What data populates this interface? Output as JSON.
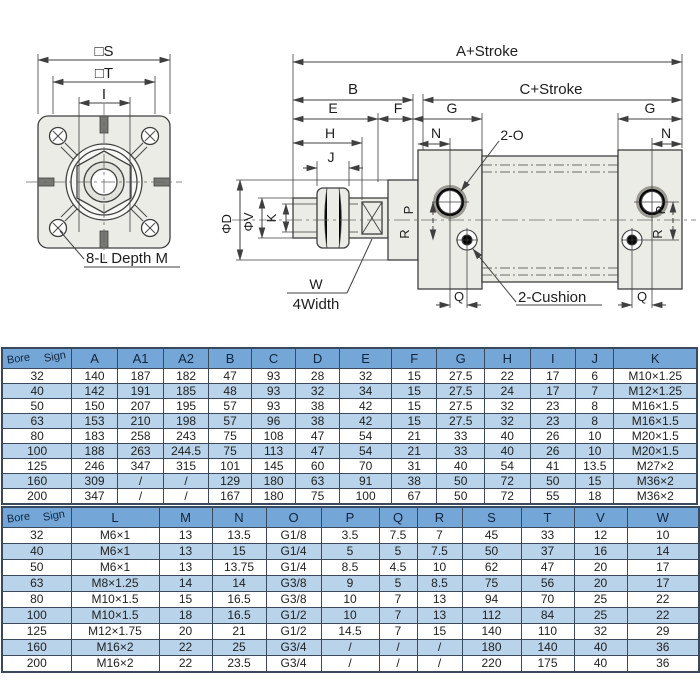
{
  "colors": {
    "header_blue": "#74a7d8",
    "row_alt_blue": "#b9d4ea",
    "table_border": "#3a4a5c",
    "drawing_line": "#3f3f3f",
    "metal_fill": "#ecece7"
  },
  "diagram": {
    "front_view": {
      "s": "□S",
      "t": "□T",
      "i": "I",
      "holes": "8-L Depth M"
    },
    "side_view": {
      "a": "A+Stroke",
      "b": "B",
      "c": "C+Stroke",
      "e": "E",
      "f": "F",
      "g": "G",
      "h": "H",
      "n": "N",
      "o": "2-O",
      "j": "J",
      "phi_d": "ΦD",
      "phi_v": "ΦV",
      "k": "K",
      "p": "P",
      "r": "R",
      "q": "Q",
      "w": "W",
      "width4": "4Width",
      "cushion": "2-Cushion"
    }
  },
  "table1": {
    "corner": {
      "top": "Sign",
      "bottom": "Bore"
    },
    "columns": [
      "A",
      "A1",
      "A2",
      "B",
      "C",
      "D",
      "E",
      "F",
      "G",
      "H",
      "I",
      "J",
      "K"
    ],
    "rows": [
      {
        "bore": "32",
        "values": [
          "140",
          "187",
          "182",
          "47",
          "93",
          "28",
          "32",
          "15",
          "27.5",
          "22",
          "17",
          "6",
          "M10×1.25"
        ]
      },
      {
        "bore": "40",
        "values": [
          "142",
          "191",
          "185",
          "48",
          "93",
          "32",
          "34",
          "15",
          "27.5",
          "24",
          "17",
          "7",
          "M12×1.25"
        ]
      },
      {
        "bore": "50",
        "values": [
          "150",
          "207",
          "195",
          "57",
          "93",
          "38",
          "42",
          "15",
          "27.5",
          "32",
          "23",
          "8",
          "M16×1.5"
        ]
      },
      {
        "bore": "63",
        "values": [
          "153",
          "210",
          "198",
          "57",
          "96",
          "38",
          "42",
          "15",
          "27.5",
          "32",
          "23",
          "8",
          "M16×1.5"
        ]
      },
      {
        "bore": "80",
        "values": [
          "183",
          "258",
          "243",
          "75",
          "108",
          "47",
          "54",
          "21",
          "33",
          "40",
          "26",
          "10",
          "M20×1.5"
        ]
      },
      {
        "bore": "100",
        "values": [
          "188",
          "263",
          "244.5",
          "75",
          "113",
          "47",
          "54",
          "21",
          "33",
          "40",
          "26",
          "10",
          "M20×1.5"
        ]
      },
      {
        "bore": "125",
        "values": [
          "246",
          "347",
          "315",
          "101",
          "145",
          "60",
          "70",
          "31",
          "40",
          "54",
          "41",
          "13.5",
          "M27×2"
        ]
      },
      {
        "bore": "160",
        "values": [
          "309",
          "/",
          "/",
          "129",
          "180",
          "63",
          "91",
          "38",
          "50",
          "72",
          "50",
          "15",
          "M36×2"
        ]
      },
      {
        "bore": "200",
        "values": [
          "347",
          "/",
          "/",
          "167",
          "180",
          "75",
          "100",
          "67",
          "50",
          "72",
          "55",
          "18",
          "M36×2"
        ]
      }
    ]
  },
  "table2": {
    "corner": {
      "top": "Sign",
      "bottom": "Bore"
    },
    "columns": [
      "L",
      "M",
      "N",
      "O",
      "P",
      "Q",
      "R",
      "S",
      "T",
      "V",
      "W"
    ],
    "rows": [
      {
        "bore": "32",
        "values": [
          "M6×1",
          "13",
          "13.5",
          "G1/8",
          "3.5",
          "7.5",
          "7",
          "45",
          "33",
          "12",
          "10"
        ]
      },
      {
        "bore": "40",
        "values": [
          "M6×1",
          "13",
          "15",
          "G1/4",
          "5",
          "5",
          "7.5",
          "50",
          "37",
          "16",
          "14"
        ]
      },
      {
        "bore": "50",
        "values": [
          "M6×1",
          "13",
          "13.75",
          "G1/4",
          "8.5",
          "4.5",
          "10",
          "62",
          "47",
          "20",
          "17"
        ]
      },
      {
        "bore": "63",
        "values": [
          "M8×1.25",
          "14",
          "14",
          "G3/8",
          "9",
          "5",
          "8.5",
          "75",
          "56",
          "20",
          "17"
        ]
      },
      {
        "bore": "80",
        "values": [
          "M10×1.5",
          "15",
          "16.5",
          "G3/8",
          "10",
          "7",
          "13",
          "94",
          "70",
          "25",
          "22"
        ]
      },
      {
        "bore": "100",
        "values": [
          "M10×1.5",
          "18",
          "16.5",
          "G1/2",
          "10",
          "7",
          "13",
          "112",
          "84",
          "25",
          "22"
        ]
      },
      {
        "bore": "125",
        "values": [
          "M12×1.75",
          "20",
          "21",
          "G1/2",
          "14.5",
          "7",
          "15",
          "140",
          "110",
          "32",
          "29"
        ]
      },
      {
        "bore": "160",
        "values": [
          "M16×2",
          "22",
          "25",
          "G3/4",
          "/",
          "/",
          "/",
          "180",
          "140",
          "40",
          "36"
        ]
      },
      {
        "bore": "200",
        "values": [
          "M16×2",
          "22",
          "23.5",
          "G3/4",
          "/",
          "/",
          "/",
          "220",
          "175",
          "40",
          "36"
        ]
      }
    ]
  }
}
